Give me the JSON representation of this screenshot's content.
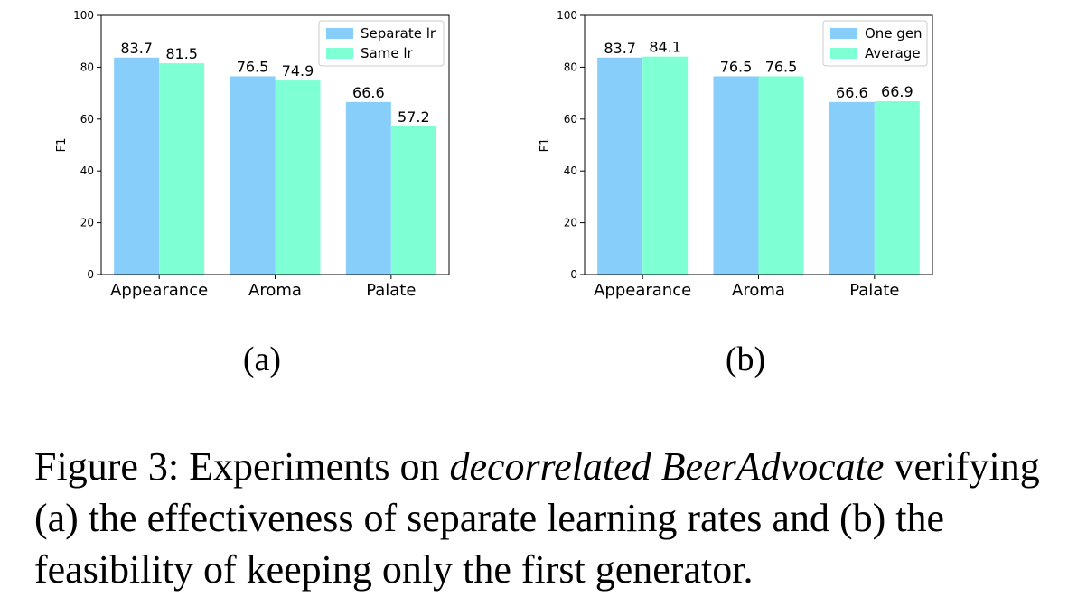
{
  "colors": {
    "series_a": "#87cefa",
    "series_b": "#7fffd4",
    "axis": "#000000"
  },
  "chart_data": [
    {
      "type": "bar",
      "panel_label": "(a)",
      "categories": [
        "Appearance",
        "Aroma",
        "Palate"
      ],
      "series": [
        {
          "name": "Separate lr",
          "values": [
            83.7,
            76.5,
            66.6
          ]
        },
        {
          "name": "Same lr",
          "values": [
            81.5,
            74.9,
            57.2
          ]
        }
      ],
      "title": "",
      "xlabel": "",
      "ylabel": "F1",
      "ylim": [
        0,
        100
      ],
      "yticks": [
        "0",
        "20",
        "40",
        "60",
        "80",
        "100"
      ],
      "data_labels": [
        [
          "83.7",
          "76.5",
          "66.6"
        ],
        [
          "81.5",
          "74.9",
          "57.2"
        ]
      ],
      "legend": "top-right",
      "grid": false
    },
    {
      "type": "bar",
      "panel_label": "(b)",
      "categories": [
        "Appearance",
        "Aroma",
        "Palate"
      ],
      "series": [
        {
          "name": "One gen",
          "values": [
            83.7,
            76.5,
            66.6
          ]
        },
        {
          "name": "Average",
          "values": [
            84.1,
            76.5,
            66.9
          ]
        }
      ],
      "title": "",
      "xlabel": "",
      "ylabel": "F1",
      "ylim": [
        0,
        100
      ],
      "yticks": [
        "0",
        "20",
        "40",
        "60",
        "80",
        "100"
      ],
      "data_labels": [
        [
          "83.7",
          "76.5",
          "66.6"
        ],
        [
          "84.1",
          "76.5",
          "66.9"
        ]
      ],
      "legend": "top-right",
      "grid": false
    }
  ],
  "caption": {
    "prefix": "Figure 3: Experiments on ",
    "emphasis": "decorrelated BeerAdvocate",
    "suffix": " verifying (a) the effectiveness of separate learning rates and (b) the feasibility of keeping only the first generator."
  }
}
